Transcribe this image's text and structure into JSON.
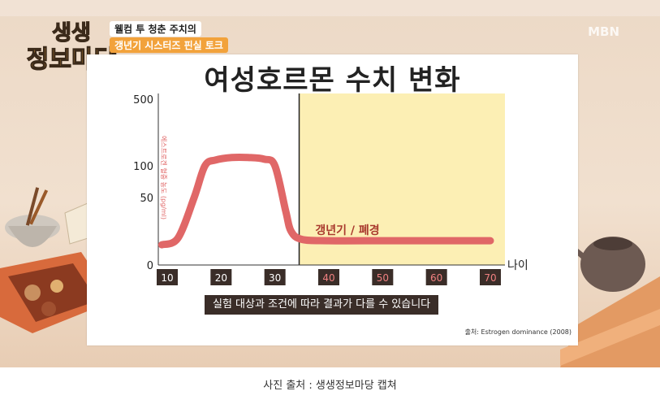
{
  "show": {
    "logo_line1": "생생",
    "logo_line2": "정보마당",
    "caption_line1": "웰컴 투 청춘 주치의",
    "caption_line2": "갱년기 시스터즈 핀실 토크",
    "broadcaster": "MBN"
  },
  "chart_data": {
    "type": "line",
    "title": "여성호르몬 수치 변화",
    "ylabel": "에스트로겐 혈중 농도 (pg/ml)",
    "xlabel": "나이",
    "x_ticks": [
      "10",
      "20",
      "30",
      "40",
      "50",
      "60",
      "70"
    ],
    "y_ticks": [
      "0",
      "50",
      "100",
      "500"
    ],
    "y_tick_values": [
      0,
      50,
      100,
      500
    ],
    "xlim": [
      10,
      70
    ],
    "ylim": [
      0,
      500
    ],
    "y_scale": "nonlinear",
    "series": [
      {
        "values": [
          {
            "x": 9,
            "y": 15
          },
          {
            "x": 12,
            "y": 20
          },
          {
            "x": 15,
            "y": 50
          },
          {
            "x": 17,
            "y": 100
          },
          {
            "x": 19,
            "y": 135
          },
          {
            "x": 22,
            "y": 150
          },
          {
            "x": 25,
            "y": 150
          },
          {
            "x": 28,
            "y": 140
          },
          {
            "x": 30,
            "y": 100
          },
          {
            "x": 32,
            "y": 40
          },
          {
            "x": 33,
            "y": 25
          },
          {
            "x": 35,
            "y": 19
          },
          {
            "x": 40,
            "y": 18
          },
          {
            "x": 50,
            "y": 18
          },
          {
            "x": 60,
            "y": 18
          },
          {
            "x": 70,
            "y": 18
          }
        ],
        "color": "#e06767"
      }
    ],
    "highlight_region": {
      "label": "갱년기 / 폐경",
      "x_start": 34.5,
      "x_end": 72,
      "color": "#fcefb4"
    },
    "grid": false,
    "legend": "none"
  },
  "notice": "실험 대상과 조건에 따라 결과가 다를 수 있습니다",
  "source": "출처: Estrogen dominance (2008)",
  "photo_caption": "사진 출처 : 생생정보마당 캡쳐"
}
